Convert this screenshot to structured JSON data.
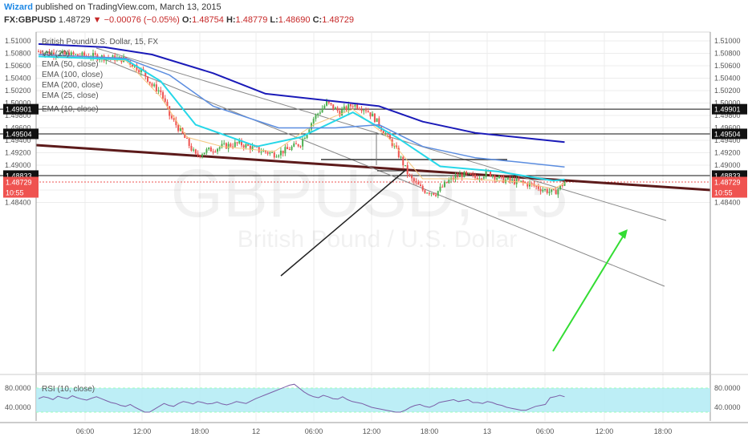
{
  "header": {
    "author": "Wizard",
    "published_text": "published on TradingView.com, March 13, 2015",
    "symbol": "FX:GBPUSD",
    "price": "1.48729",
    "change": "−0.00076 (−0.05%)",
    "o_label": "O:",
    "o_value": "1.48754",
    "h_label": "H:",
    "h_value": "1.48779",
    "l_label": "L:",
    "l_value": "1.48690",
    "c_label": "C:",
    "c_value": "1.48729"
  },
  "watermark": {
    "big": "GBPUSD, 15",
    "small": "British Pound / U.S. Dollar"
  },
  "legend": {
    "title": "British Pound/U.S. Dollar, 15, FX",
    "items": [
      "Vol (20)",
      "EMA (50, close)",
      "EMA (100, close)",
      "EMA (200, close)",
      "EMA (25, close)",
      "EMA (10, close)"
    ]
  },
  "rsi_label": "RSI (10, close)",
  "colors": {
    "up": "#4caf50",
    "down": "#ef5350",
    "ema10": "#f5c77e",
    "ema25": "#26d7e8",
    "ema50": "#5b8de0",
    "ema100": "#1a1ab8",
    "ema200": "#1a1ab8",
    "trend_red": "#5c1a1a",
    "arrow": "#33dd33",
    "rsi_line": "#7b5ea7",
    "rsi_band": "#b6ecf5"
  },
  "chart_data": {
    "type": "candlestick",
    "symbol": "GBPUSD",
    "interval": "15",
    "y_price_range": [
      1.482,
      1.5112
    ],
    "y_ticks": [
      "1.51000",
      "1.50800",
      "1.50600",
      "1.50400",
      "1.50200",
      "1.50000",
      "1.49800",
      "1.49600",
      "1.49400",
      "1.49200",
      "1.49000",
      "1.48600",
      "1.48400"
    ],
    "x_ticks": [
      "06:00",
      "12:00",
      "18:00",
      "12",
      "06:00",
      "12:00",
      "18:00",
      "13",
      "06:00",
      "12:00",
      "18:00"
    ],
    "price_labels": [
      {
        "value": "1.49901",
        "style": "level"
      },
      {
        "value": "1.49504",
        "style": "level"
      },
      {
        "value": "1.48833",
        "style": "level"
      },
      {
        "value": "1.48729",
        "style": "current"
      },
      {
        "value": "10:55",
        "style": "current"
      }
    ],
    "horizontal_levels": [
      1.49901,
      1.49504,
      1.48833
    ],
    "current_price": 1.48729,
    "rsi": {
      "ticks": [
        "80.0000",
        "40.0000"
      ],
      "upper": 80,
      "lower": 40
    },
    "candle_path": [
      [
        0,
        1.5083
      ],
      [
        12,
        1.5078
      ],
      [
        26,
        1.5075
      ],
      [
        40,
        1.507
      ],
      [
        48,
        1.505
      ],
      [
        52,
        1.5028
      ],
      [
        56,
        1.5018
      ],
      [
        60,
        1.498
      ],
      [
        64,
        1.496
      ],
      [
        68,
        1.4938
      ],
      [
        72,
        1.4915
      ],
      [
        76,
        1.4922
      ],
      [
        84,
        1.493
      ],
      [
        92,
        1.4935
      ],
      [
        100,
        1.4925
      ],
      [
        108,
        1.4918
      ],
      [
        114,
        1.4925
      ],
      [
        120,
        1.4935
      ],
      [
        126,
        1.4975
      ],
      [
        132,
        1.5
      ],
      [
        138,
        1.4985
      ],
      [
        144,
        1.4998
      ],
      [
        150,
        1.499
      ],
      [
        154,
        1.4975
      ],
      [
        158,
        1.4955
      ],
      [
        162,
        1.4935
      ],
      [
        166,
        1.491
      ],
      [
        170,
        1.488
      ],
      [
        176,
        1.486
      ],
      [
        182,
        1.4855
      ],
      [
        188,
        1.4875
      ],
      [
        194,
        1.4885
      ],
      [
        200,
        1.488
      ],
      [
        206,
        1.4888
      ],
      [
        212,
        1.4877
      ],
      [
        220,
        1.4873
      ],
      [
        226,
        1.4868
      ],
      [
        232,
        1.486
      ],
      [
        236,
        1.4855
      ],
      [
        239,
        1.4865
      ],
      [
        241,
        1.4873
      ]
    ],
    "ema_paths": {
      "ema10": [
        [
          0,
          1.5078
        ],
        [
          40,
          1.5068
        ],
        [
          56,
          1.501
        ],
        [
          68,
          1.4945
        ],
        [
          84,
          1.493
        ],
        [
          108,
          1.4922
        ],
        [
          126,
          1.4965
        ],
        [
          144,
          1.499
        ],
        [
          160,
          1.4945
        ],
        [
          176,
          1.4878
        ],
        [
          196,
          1.4878
        ],
        [
          220,
          1.4873
        ],
        [
          236,
          1.4862
        ],
        [
          241,
          1.4871
        ]
      ],
      "ema25": [
        [
          0,
          1.5075
        ],
        [
          40,
          1.507
        ],
        [
          56,
          1.5035
        ],
        [
          72,
          1.4965
        ],
        [
          100,
          1.493
        ],
        [
          120,
          1.4945
        ],
        [
          144,
          1.4985
        ],
        [
          164,
          1.4945
        ],
        [
          184,
          1.4898
        ],
        [
          210,
          1.489
        ],
        [
          236,
          1.4875
        ],
        [
          241,
          1.4877
        ]
      ],
      "ema50": [
        [
          0,
          1.5078
        ],
        [
          40,
          1.5072
        ],
        [
          60,
          1.5045
        ],
        [
          80,
          1.4995
        ],
        [
          110,
          1.496
        ],
        [
          136,
          1.496
        ],
        [
          156,
          1.4965
        ],
        [
          176,
          1.493
        ],
        [
          200,
          1.4912
        ],
        [
          220,
          1.4905
        ],
        [
          241,
          1.4897
        ]
      ],
      "ema100": [
        [
          0,
          1.5095
        ],
        [
          30,
          1.509
        ],
        [
          52,
          1.5078
        ],
        [
          80,
          1.5048
        ],
        [
          104,
          1.5015
        ],
        [
          130,
          1.5005
        ],
        [
          156,
          1.4995
        ],
        [
          176,
          1.497
        ],
        [
          200,
          1.4952
        ],
        [
          241,
          1.4937
        ]
      ]
    },
    "rsi_series": [
      58,
      62,
      60,
      56,
      63,
      60,
      58,
      64,
      60,
      57,
      55,
      59,
      62,
      58,
      54,
      50,
      48,
      44,
      42,
      46,
      40,
      35,
      30,
      30,
      36,
      42,
      48,
      44,
      42,
      48,
      52,
      50,
      47,
      52,
      50,
      47,
      48,
      51,
      47,
      45,
      48,
      52,
      50,
      48,
      53,
      58,
      62,
      66,
      70,
      74,
      78,
      82,
      86,
      88,
      80,
      72,
      66,
      62,
      60,
      65,
      62,
      58,
      57,
      62,
      56,
      52,
      50,
      48,
      44,
      40,
      38,
      36,
      34,
      32,
      30,
      30,
      34,
      40,
      44,
      46,
      42,
      40,
      44,
      50,
      52,
      54,
      56,
      52,
      54,
      56,
      50,
      50,
      48,
      52,
      50,
      46,
      44,
      40,
      38,
      36,
      34,
      34,
      38,
      42,
      44,
      46,
      60,
      62,
      65,
      62
    ]
  }
}
